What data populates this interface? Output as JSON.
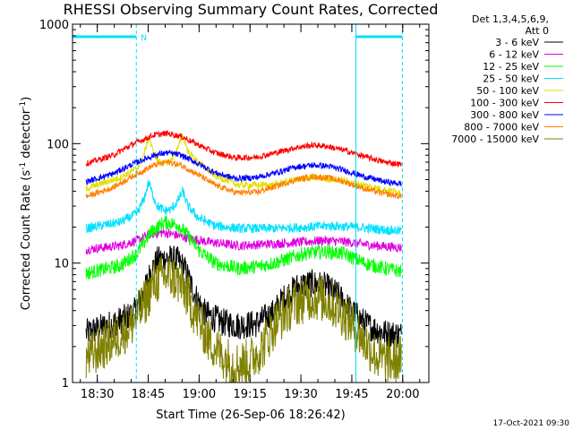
{
  "chart_data": {
    "type": "line",
    "title": "RHESSI Observing Summary Count Rates, Corrected",
    "ylabel_parts": [
      "Corrected Count Rate (s",
      "-1",
      " detector",
      "-1",
      ")"
    ],
    "xlabel": "Start Time (26-Sep-06 18:26:42)",
    "y_scale": "log",
    "ylim": [
      1,
      1000
    ],
    "y_ticks": [
      1,
      10,
      100,
      1000
    ],
    "y_tick_labels": [
      "1",
      "10",
      "100",
      "1000"
    ],
    "x_start_minutes": 0,
    "xlim_minutes": [
      -4,
      101
    ],
    "x_ticks_minutes": [
      3.3,
      18.3,
      33.3,
      48.3,
      63.3,
      78.3,
      93.3
    ],
    "x_tick_labels": [
      "18:30",
      "18:45",
      "19:00",
      "19:15",
      "19:30",
      "19:45",
      "20:00"
    ],
    "legend_header": [
      "Det 1,3,4,5,6,9,",
      "Att 0"
    ],
    "legend_placement": "right",
    "series": [
      {
        "name": "3 - 6 keV",
        "color": "#000000",
        "points": [
          [
            0,
            2.6
          ],
          [
            10,
            3.3
          ],
          [
            14,
            3.8
          ],
          [
            17,
            5.5
          ],
          [
            19,
            8.5
          ],
          [
            21,
            10.5
          ],
          [
            24,
            11
          ],
          [
            27,
            10.5
          ],
          [
            29,
            9
          ],
          [
            32,
            5.5
          ],
          [
            35,
            3.8
          ],
          [
            40,
            3.2
          ],
          [
            45,
            3.0
          ],
          [
            50,
            3.1
          ],
          [
            55,
            3.8
          ],
          [
            58,
            5.0
          ],
          [
            62,
            6.3
          ],
          [
            66,
            6.8
          ],
          [
            70,
            6.5
          ],
          [
            74,
            5.5
          ],
          [
            78,
            4.0
          ],
          [
            83,
            3.0
          ],
          [
            88,
            2.6
          ],
          [
            93,
            2.5
          ]
        ],
        "noise": 0.12
      },
      {
        "name": "6 - 12 keV",
        "color": "#e000e0",
        "points": [
          [
            0,
            13
          ],
          [
            10,
            14
          ],
          [
            15,
            15.5
          ],
          [
            19,
            17.5
          ],
          [
            23,
            18
          ],
          [
            27,
            17
          ],
          [
            31,
            16
          ],
          [
            36,
            15
          ],
          [
            45,
            14
          ],
          [
            55,
            14.5
          ],
          [
            64,
            15
          ],
          [
            70,
            15.5
          ],
          [
            77,
            15
          ],
          [
            85,
            14
          ],
          [
            93,
            13.5
          ]
        ],
        "noise": 0.04
      },
      {
        "name": "12 - 25 keV",
        "color": "#00ff00",
        "points": [
          [
            0,
            8.2
          ],
          [
            10,
            9.5
          ],
          [
            15,
            12
          ],
          [
            19,
            18
          ],
          [
            23,
            22
          ],
          [
            27,
            21
          ],
          [
            30,
            17
          ],
          [
            33,
            13
          ],
          [
            38,
            10
          ],
          [
            45,
            9
          ],
          [
            52,
            9.5
          ],
          [
            58,
            10.5
          ],
          [
            64,
            12
          ],
          [
            70,
            12.5
          ],
          [
            76,
            12
          ],
          [
            82,
            10
          ],
          [
            88,
            9
          ],
          [
            93,
            8.5
          ]
        ],
        "noise": 0.06
      },
      {
        "name": "25 - 50 keV",
        "color": "#00e0ff",
        "points": [
          [
            0,
            19.5
          ],
          [
            10,
            22
          ],
          [
            15,
            26
          ],
          [
            17,
            34
          ],
          [
            18.5,
            48
          ],
          [
            19.5,
            38
          ],
          [
            21,
            30
          ],
          [
            23,
            27.5
          ],
          [
            25,
            28
          ],
          [
            27,
            33
          ],
          [
            28.5,
            40
          ],
          [
            30,
            30
          ],
          [
            33,
            24
          ],
          [
            38,
            20.5
          ],
          [
            45,
            19.5
          ],
          [
            55,
            19.5
          ],
          [
            65,
            20
          ],
          [
            72,
            20.5
          ],
          [
            80,
            20
          ],
          [
            88,
            19
          ],
          [
            93,
            18.5
          ]
        ],
        "noise": 0.04
      },
      {
        "name": "50 - 100 keV",
        "color": "#e0e000",
        "points": [
          [
            0,
            42
          ],
          [
            10,
            52
          ],
          [
            15,
            62
          ],
          [
            17,
            80
          ],
          [
            18.5,
            115
          ],
          [
            19.5,
            90
          ],
          [
            21,
            72
          ],
          [
            23,
            68
          ],
          [
            25,
            72
          ],
          [
            27,
            92
          ],
          [
            28.5,
            118
          ],
          [
            30,
            86
          ],
          [
            33,
            70
          ],
          [
            38,
            54
          ],
          [
            45,
            45
          ],
          [
            55,
            45
          ],
          [
            62,
            50
          ],
          [
            68,
            52
          ],
          [
            74,
            50
          ],
          [
            80,
            46
          ],
          [
            88,
            41
          ],
          [
            93,
            39
          ]
        ],
        "noise": 0.03
      },
      {
        "name": "100 - 300 keV",
        "color": "#ff0000",
        "points": [
          [
            0,
            68
          ],
          [
            8,
            80
          ],
          [
            14,
            100
          ],
          [
            20,
            118
          ],
          [
            24,
            122
          ],
          [
            28,
            115
          ],
          [
            33,
            98
          ],
          [
            38,
            84
          ],
          [
            44,
            76
          ],
          [
            50,
            77
          ],
          [
            56,
            84
          ],
          [
            62,
            93
          ],
          [
            67,
            97
          ],
          [
            71,
            95
          ],
          [
            76,
            88
          ],
          [
            82,
            78
          ],
          [
            88,
            70
          ],
          [
            93,
            67
          ]
        ],
        "noise": 0.025
      },
      {
        "name": "300 - 800 keV",
        "color": "#0000ff",
        "points": [
          [
            0,
            48
          ],
          [
            8,
            56
          ],
          [
            14,
            68
          ],
          [
            20,
            80
          ],
          [
            24,
            84
          ],
          [
            28,
            80
          ],
          [
            33,
            68
          ],
          [
            38,
            57
          ],
          [
            44,
            51
          ],
          [
            50,
            52
          ],
          [
            56,
            57
          ],
          [
            62,
            64
          ],
          [
            67,
            66
          ],
          [
            71,
            65
          ],
          [
            76,
            60
          ],
          [
            82,
            53
          ],
          [
            88,
            48
          ],
          [
            93,
            46
          ]
        ],
        "noise": 0.025
      },
      {
        "name": "800 - 7000 keV",
        "color": "#ff8000",
        "points": [
          [
            0,
            36
          ],
          [
            8,
            43
          ],
          [
            14,
            54
          ],
          [
            20,
            66
          ],
          [
            24,
            70
          ],
          [
            28,
            66
          ],
          [
            33,
            55
          ],
          [
            38,
            45
          ],
          [
            44,
            39
          ],
          [
            50,
            39
          ],
          [
            56,
            44
          ],
          [
            62,
            50
          ],
          [
            67,
            53
          ],
          [
            71,
            52
          ],
          [
            76,
            48
          ],
          [
            82,
            42
          ],
          [
            88,
            38
          ],
          [
            93,
            36
          ]
        ],
        "noise": 0.025
      },
      {
        "name": "7000 - 15000 keV",
        "color": "#808000",
        "points": [
          [
            0,
            1.6
          ],
          [
            10,
            2.5
          ],
          [
            14,
            3.2
          ],
          [
            17,
            4.5
          ],
          [
            20,
            6.8
          ],
          [
            23,
            7.8
          ],
          [
            26,
            7.5
          ],
          [
            29,
            6.0
          ],
          [
            32,
            3.8
          ],
          [
            36,
            2.3
          ],
          [
            40,
            1.7
          ],
          [
            44,
            1.4
          ],
          [
            48,
            1.5
          ],
          [
            52,
            2.0
          ],
          [
            56,
            3.2
          ],
          [
            61,
            4.5
          ],
          [
            66,
            5.2
          ],
          [
            70,
            5.0
          ],
          [
            74,
            4.2
          ],
          [
            78,
            3.2
          ],
          [
            82,
            2.2
          ],
          [
            86,
            1.6
          ],
          [
            90,
            1.5
          ],
          [
            93,
            1.6
          ]
        ],
        "noise": 0.2
      }
    ],
    "night_intervals_minutes": [
      [
        -4,
        14.8
      ],
      [
        79.5,
        93.2
      ]
    ],
    "saa_marker_label": "N",
    "vertical_lines_minutes": [
      14.8,
      79.5,
      93.2
    ]
  },
  "footer_stamp": "17-Oct-2021 09:30"
}
